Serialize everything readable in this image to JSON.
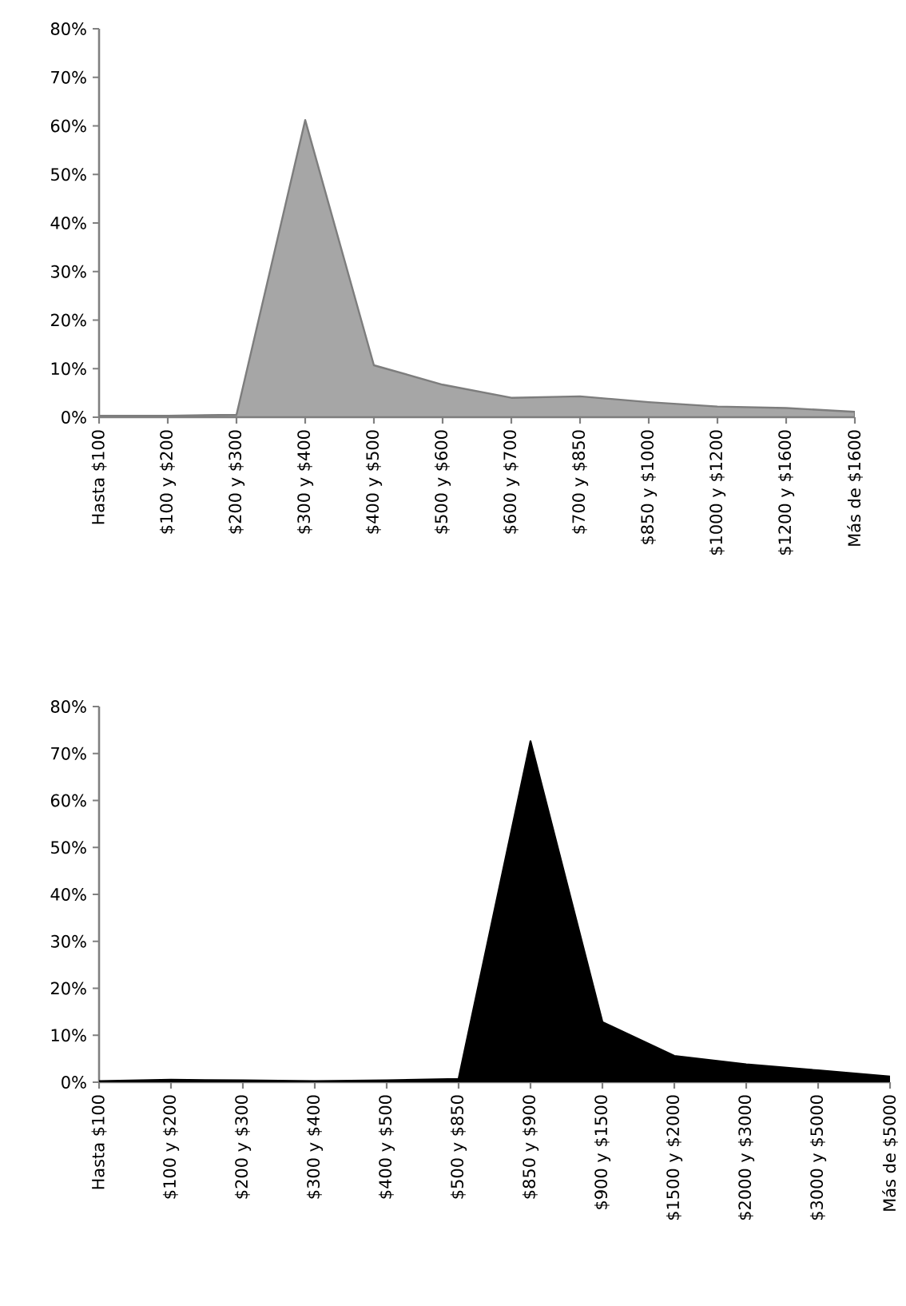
{
  "chart_data": [
    {
      "type": "area",
      "categories": [
        "Hasta $100",
        "$100 y $200",
        "$200 y $300",
        "$300 y $400",
        "$400 y $500",
        "$500 y $600",
        "$600 y $700",
        "$700 y $850",
        "$850 y $1000",
        "$1000 y $1200",
        "$1200 y $1600",
        "Más de $1600"
      ],
      "series": [
        {
          "color": "#a6a6a6",
          "values": [
            0.3,
            0.3,
            0.5,
            61.2,
            10.7,
            6.7,
            4.0,
            4.3,
            3.1,
            2.2,
            1.9,
            1.1
          ]
        }
      ],
      "ylim": [
        0,
        80
      ],
      "yticks": [
        {
          "value": 0,
          "label": "0%"
        },
        {
          "value": 10,
          "label": "10%"
        },
        {
          "value": 20,
          "label": "20%"
        },
        {
          "value": 30,
          "label": "30%"
        },
        {
          "value": 40,
          "label": "40%"
        },
        {
          "value": 50,
          "label": "50%"
        },
        {
          "value": 60,
          "label": "60%"
        },
        {
          "value": 70,
          "label": "70%"
        },
        {
          "value": 80,
          "label": "80%"
        }
      ]
    },
    {
      "type": "area",
      "categories": [
        "Hasta $100",
        "$100 y $200",
        "$200 y $300",
        "$300 y $400",
        "$400 y $500",
        "$500 y $850",
        "$850 y $900",
        "$900 y $1500",
        "$1500 y $2000",
        "$2000 y $3000",
        "$3000 y $5000",
        "Más de $5000"
      ],
      "series": [
        {
          "color": "#000000",
          "values": [
            0.2,
            0.5,
            0.4,
            0.2,
            0.4,
            0.7,
            72.6,
            12.8,
            5.6,
            3.8,
            2.5,
            1.2
          ]
        }
      ],
      "ylim": [
        0,
        80
      ],
      "yticks": [
        {
          "value": 0,
          "label": "0%"
        },
        {
          "value": 10,
          "label": "10%"
        },
        {
          "value": 20,
          "label": "20%"
        },
        {
          "value": 30,
          "label": "30%"
        },
        {
          "value": 40,
          "label": "40%"
        },
        {
          "value": 50,
          "label": "50%"
        },
        {
          "value": 60,
          "label": "60%"
        },
        {
          "value": 70,
          "label": "70%"
        },
        {
          "value": 80,
          "label": "80%"
        }
      ]
    }
  ]
}
